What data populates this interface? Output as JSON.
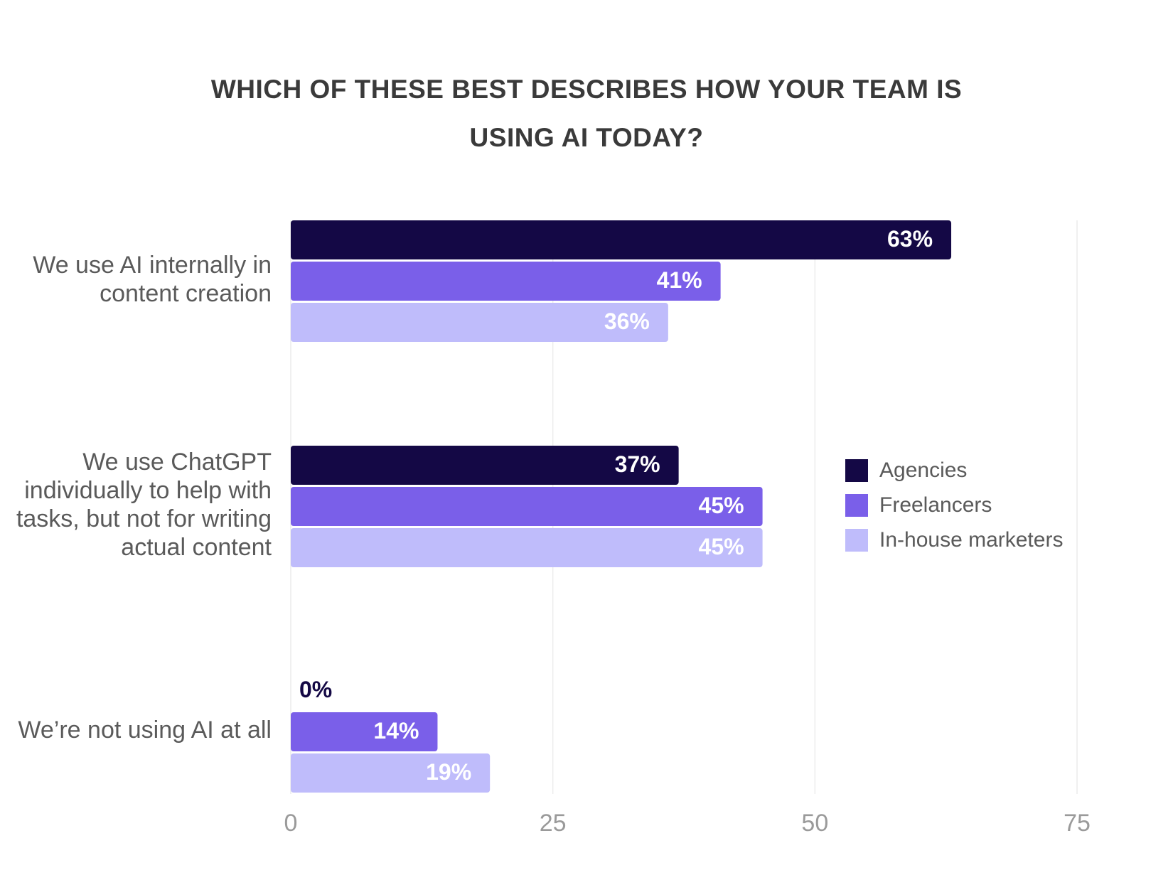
{
  "chart_data": {
    "type": "bar",
    "orientation": "horizontal",
    "title": "WHICH OF THESE BEST DESCRIBES HOW YOUR TEAM IS USING AI TODAY?",
    "categories": [
      "We use AI internally in content creation",
      "We use ChatGPT individually to help with tasks, but not for writing actual content",
      "We’re not using AI at all"
    ],
    "series": [
      {
        "name": "Agencies",
        "color": "#140845",
        "values": [
          63,
          37,
          0
        ],
        "value_labels": [
          "63%",
          "37%",
          "0%"
        ]
      },
      {
        "name": "Freelancers",
        "color": "#7a5fe9",
        "values": [
          41,
          45,
          14
        ],
        "value_labels": [
          "41%",
          "45%",
          "14%"
        ]
      },
      {
        "name": "In-house marketers",
        "color": "#bfbcfb",
        "values": [
          36,
          45,
          19
        ],
        "value_labels": [
          "36%",
          "45%",
          "19%"
        ]
      }
    ],
    "xlim": [
      0,
      75
    ],
    "xticks": [
      0,
      25,
      50,
      75
    ],
    "grid": true,
    "legend": "right"
  }
}
